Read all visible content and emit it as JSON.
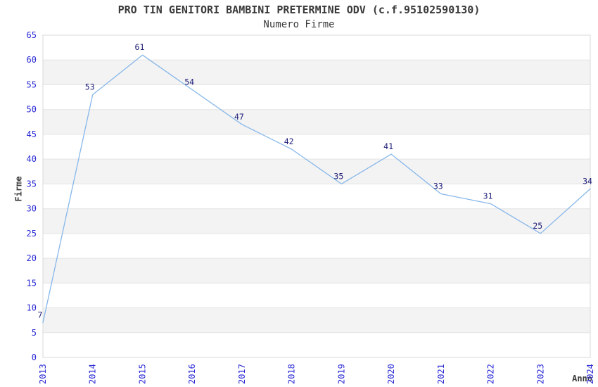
{
  "header": {
    "title": "PRO TIN GENITORI BAMBINI PRETERMINE ODV (c.f.95102590130)",
    "subtitle": "Numero Firme"
  },
  "chart_data": {
    "type": "line",
    "title": "PRO TIN GENITORI BAMBINI PRETERMINE ODV (c.f.95102590130)",
    "subtitle": "Numero Firme",
    "xlabel": "Anno",
    "ylabel": "Firme",
    "categories": [
      "2013",
      "2014",
      "2015",
      "2016",
      "2017",
      "2018",
      "2019",
      "2020",
      "2021",
      "2022",
      "2023",
      "2024"
    ],
    "values": [
      7,
      53,
      61,
      54,
      47,
      42,
      35,
      41,
      33,
      31,
      25,
      34
    ],
    "data_labels_visible": true,
    "ylim": [
      0,
      65
    ],
    "ytick_step": 5,
    "yticks": [
      0,
      5,
      10,
      15,
      20,
      25,
      30,
      35,
      40,
      45,
      50,
      55,
      60,
      65
    ],
    "grid": true,
    "band_rows": "alternating horizontal bands every 5 units, gray on 5-10, 15-20, 25-30, 35-40, 45-50, 55-60",
    "legend": "none",
    "markers": "none",
    "x_tick_rotation_deg": 90,
    "colors": {
      "line": "#87b7ea",
      "tick_label": "#2b2bd5",
      "data_label": "#1c1c78",
      "band_fill": "#f3f3f3",
      "gridline": "#e4e4e4",
      "plot_border": "#d8d8d8",
      "text": "#3a3a3a",
      "background": "#ffffff"
    }
  }
}
